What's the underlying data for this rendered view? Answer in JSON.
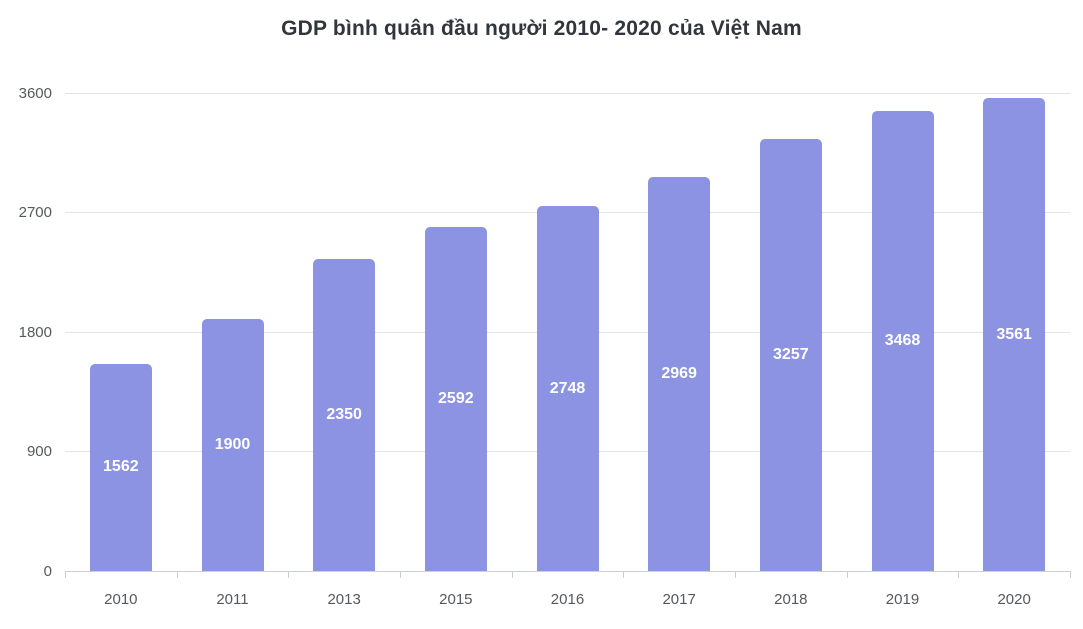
{
  "title": "GDP bình quân đầu người 2010- 2020 của Việt Nam",
  "colors": {
    "background": "#ffffff",
    "bar": "#8b93e2",
    "title_text": "#30363c",
    "axis_text": "#55585c",
    "gridline": "#e3e3e3",
    "axis_line": "#ccd0d4",
    "value_label": "#ffffff"
  },
  "chart_data": {
    "type": "bar",
    "title": "GDP bình quân đầu người 2010- 2020 của Việt Nam",
    "categories": [
      "2010",
      "2011",
      "2013",
      "2015",
      "2016",
      "2017",
      "2018",
      "2019",
      "2020"
    ],
    "values": [
      1562,
      1900,
      2350,
      2592,
      2748,
      2969,
      3257,
      3468,
      3561
    ],
    "xlabel": "",
    "ylabel": "",
    "ylim": [
      0,
      3600
    ],
    "yticks": [
      0,
      900,
      1800,
      2700,
      3600
    ],
    "grid": true,
    "legend": false,
    "value_labels": "inside-center-white-bold"
  }
}
